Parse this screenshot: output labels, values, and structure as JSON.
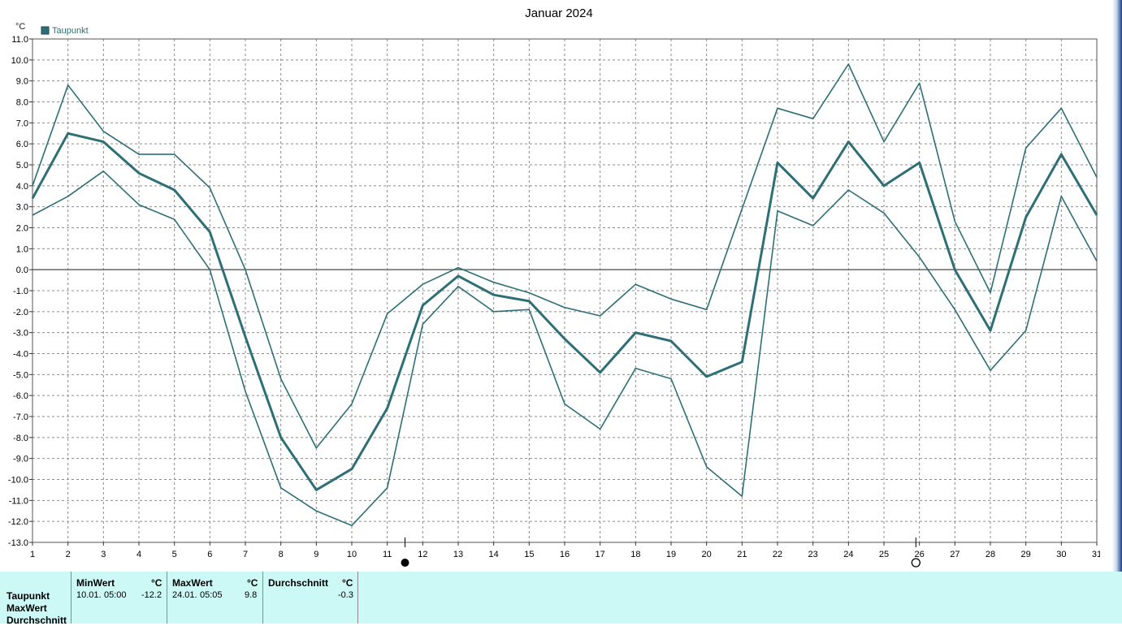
{
  "chart_data": {
    "type": "line",
    "title": "Januar 2024",
    "ylabel": "°C",
    "legend": [
      {
        "name": "Taupunkt",
        "color": "#2e6f76"
      }
    ],
    "legend_placement": "top-left",
    "ylim": [
      -13,
      11
    ],
    "grid": true,
    "x": [
      1,
      2,
      3,
      4,
      5,
      6,
      7,
      8,
      9,
      10,
      11,
      12,
      13,
      14,
      15,
      16,
      17,
      18,
      19,
      20,
      21,
      22,
      23,
      24,
      25,
      26,
      27,
      28,
      29,
      30,
      31
    ],
    "x_ticks": [
      "1",
      "2",
      "3",
      "4",
      "5",
      "6",
      "7",
      "8",
      "9",
      "10",
      "11",
      "12",
      "13",
      "14",
      "15",
      "16",
      "17",
      "18",
      "19",
      "20",
      "21",
      "22",
      "23",
      "24",
      "25",
      "26",
      "27",
      "28",
      "29",
      "30",
      "31"
    ],
    "y_ticks": [
      "11.0",
      "10.0",
      "9.0",
      "8.0",
      "7.0",
      "6.0",
      "5.0",
      "4.0",
      "3.0",
      "2.0",
      "1.0",
      "0.0",
      "-1.0",
      "-2.0",
      "-3.0",
      "-4.0",
      "-5.0",
      "-6.0",
      "-7.0",
      "-8.0",
      "-9.0",
      "-10.0",
      "-11.0",
      "-12.0",
      "-13.0"
    ],
    "series": [
      {
        "role": "max",
        "values": [
          4.0,
          8.8,
          6.6,
          5.5,
          5.5,
          3.9,
          0.0,
          -5.2,
          -8.5,
          -6.4,
          -2.1,
          -0.7,
          0.1,
          -0.6,
          -1.1,
          -1.8,
          -2.2,
          -0.7,
          -1.4,
          -1.9,
          2.9,
          7.7,
          7.2,
          9.8,
          6.1,
          8.9,
          2.3,
          -1.1,
          5.8,
          7.7,
          4.4
        ]
      },
      {
        "role": "avg",
        "values": [
          3.4,
          6.5,
          6.1,
          4.6,
          3.8,
          1.8,
          -3.2,
          -8.0,
          -10.5,
          -9.5,
          -6.6,
          -1.7,
          -0.3,
          -1.2,
          -1.5,
          -3.3,
          -4.9,
          -3.0,
          -3.4,
          -5.1,
          -4.4,
          5.1,
          3.4,
          6.1,
          4.0,
          5.1,
          0.0,
          -2.9,
          2.5,
          5.5,
          2.6
        ]
      },
      {
        "role": "min",
        "values": [
          2.6,
          3.5,
          4.7,
          3.1,
          2.4,
          0.0,
          -5.8,
          -10.4,
          -11.5,
          -12.2,
          -10.4,
          -2.6,
          -0.8,
          -2.0,
          -1.9,
          -6.4,
          -7.6,
          -4.7,
          -5.2,
          -9.4,
          -10.8,
          2.8,
          2.1,
          3.8,
          2.7,
          0.6,
          -1.9,
          -4.8,
          -2.9,
          3.5,
          0.4
        ]
      }
    ],
    "moon_markers": [
      {
        "label": "new-moon",
        "x_day": 11.5
      },
      {
        "label": "full-moon",
        "x_day": 25.9
      }
    ]
  },
  "table": {
    "row_labels": [
      "Taupunkt",
      "MaxWert",
      "Durchschnitt"
    ],
    "columns": [
      {
        "title": "MinWert",
        "unit": "°C",
        "date": "10.01.",
        "time": "05:00",
        "value": "-12.2"
      },
      {
        "title": "MaxWert",
        "unit": "°C",
        "date": "24.01.",
        "time": "05:05",
        "value": "9.8"
      },
      {
        "title": "Durchschnitt",
        "unit": "°C",
        "date": "",
        "time": "",
        "value": "-0.3"
      }
    ]
  },
  "colors": {
    "line": "#2e6f76",
    "grid": "#8c8c8c",
    "panel": "#ccf8f6"
  }
}
